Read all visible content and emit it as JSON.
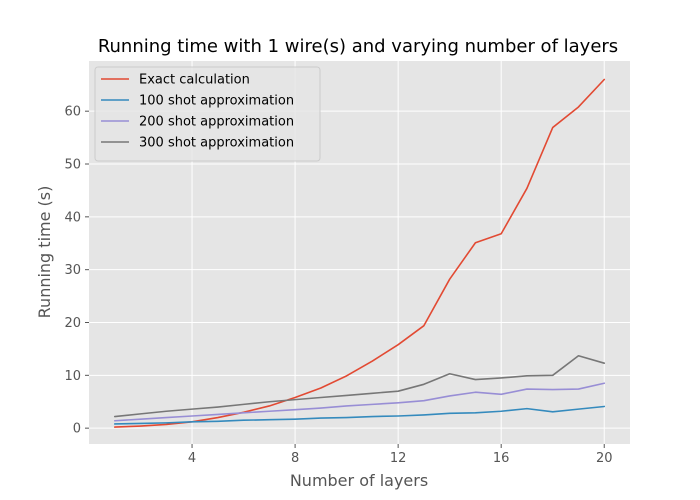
{
  "chart_data": {
    "type": "line",
    "title": "Running time with 1 wire(s) and varying number of layers",
    "xlabel": "Number of layers",
    "ylabel": "Running time (s)",
    "xlim": [
      0,
      21
    ],
    "ylim": [
      -3,
      69.5
    ],
    "xticks": [
      4,
      8,
      12,
      16,
      20
    ],
    "yticks": [
      0,
      10,
      20,
      30,
      40,
      50,
      60
    ],
    "grid": true,
    "style": "ggplot",
    "legend_position": "top-left",
    "x": [
      1,
      2,
      3,
      4,
      5,
      6,
      7,
      8,
      9,
      10,
      11,
      12,
      13,
      14,
      15,
      16,
      17,
      18,
      19,
      20
    ],
    "series": [
      {
        "name": "Exact calculation",
        "color": "#E24A33",
        "values": [
          0.2,
          0.4,
          0.7,
          1.2,
          2.0,
          3.0,
          4.2,
          5.8,
          7.6,
          9.9,
          12.7,
          15.8,
          19.4,
          28.2,
          35.1,
          36.8,
          45.4,
          56.9,
          60.8,
          66.0
        ]
      },
      {
        "name": "100 shot approximation",
        "color": "#348ABD",
        "values": [
          0.8,
          0.9,
          1.0,
          1.2,
          1.3,
          1.5,
          1.6,
          1.7,
          1.9,
          2.0,
          2.2,
          2.3,
          2.5,
          2.8,
          2.9,
          3.2,
          3.7,
          3.1,
          3.6,
          4.1
        ]
      },
      {
        "name": "200 shot approximation",
        "color": "#988ED5",
        "values": [
          1.4,
          1.7,
          2.0,
          2.3,
          2.6,
          2.9,
          3.2,
          3.5,
          3.8,
          4.2,
          4.5,
          4.8,
          5.2,
          6.1,
          6.8,
          6.4,
          7.4,
          7.3,
          7.4,
          8.5
        ]
      },
      {
        "name": "300 shot approximation",
        "color": "#777777",
        "values": [
          2.2,
          2.7,
          3.2,
          3.6,
          4.0,
          4.5,
          5.0,
          5.4,
          5.8,
          6.2,
          6.6,
          7.0,
          8.3,
          10.3,
          9.2,
          9.5,
          9.9,
          10.0,
          13.7,
          12.3
        ]
      }
    ]
  }
}
